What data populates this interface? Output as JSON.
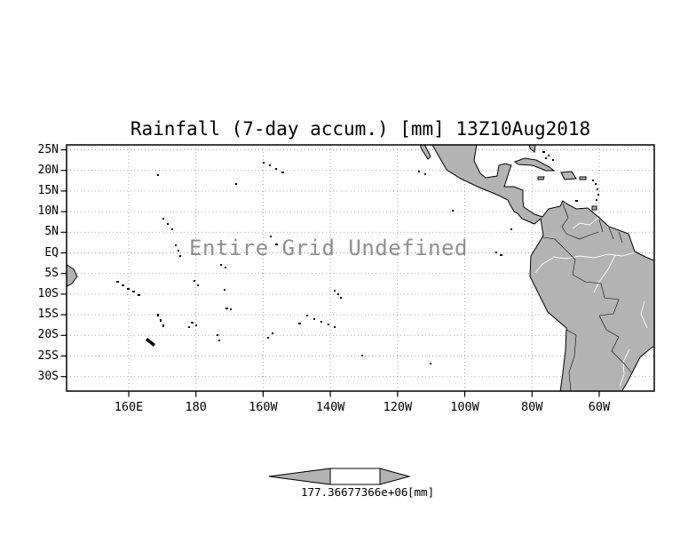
{
  "title": "Rainfall (7-day accum.) [mm] 13Z10Aug2018",
  "status_message": "Entire Grid Undefined",
  "map": {
    "y_axis_labels": [
      "25N",
      "20N",
      "15N",
      "10N",
      "5N",
      "EQ",
      "5S",
      "10S",
      "15S",
      "20S",
      "25S",
      "30S"
    ],
    "x_axis_labels": [
      "160E",
      "180",
      "160W",
      "140W",
      "120W",
      "100W",
      "80W",
      "60W"
    ],
    "land_color": "#b3b3b3",
    "grid_color": "#9a9a9a",
    "message_color": "#8f8f8f"
  },
  "colorbar": {
    "scale_label": "177.36677366e+06",
    "units_label": "[mm]"
  },
  "chart_data": {
    "type": "heatmap",
    "title": "Rainfall (7-day accum.) [mm] 13Z10Aug2018",
    "variable": "Rainfall (7-day accumulation)",
    "units": "mm",
    "valid_time": "13Z10Aug2018",
    "data_status": "Entire Grid Undefined",
    "lat_ticks": [
      "25N",
      "20N",
      "15N",
      "10N",
      "5N",
      "EQ",
      "5S",
      "10S",
      "15S",
      "20S",
      "25S",
      "30S"
    ],
    "lon_ticks": [
      "160E",
      "180",
      "160W",
      "140W",
      "120W",
      "100W",
      "80W",
      "60W"
    ],
    "grid": true,
    "legend_position": "bottom",
    "colorbar_visible_label": "177.36677366e+06 [mm]",
    "values": []
  }
}
